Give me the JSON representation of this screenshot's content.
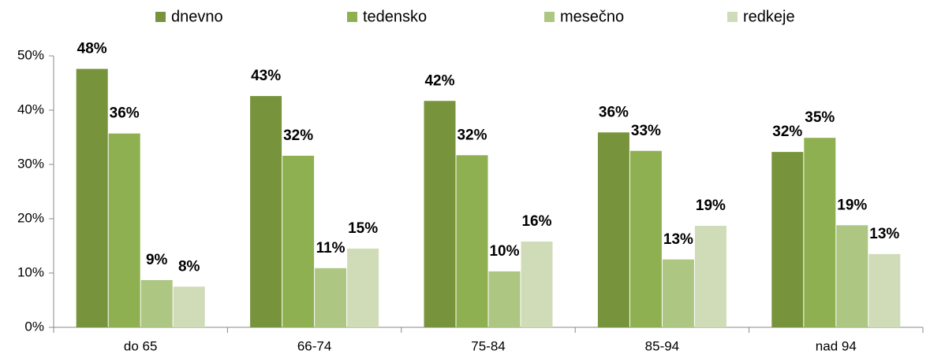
{
  "chart_data": {
    "type": "bar",
    "categories": [
      "do 65",
      "66-74",
      "75-84",
      "85-94",
      "nad 94"
    ],
    "series": [
      {
        "name": "dnevno",
        "color": "#77933c",
        "values": [
          47.6,
          42.6,
          41.7,
          35.9,
          32.3
        ],
        "value_labels": [
          "48%",
          "43%",
          "42%",
          "36%",
          "32%"
        ]
      },
      {
        "name": "tedensko",
        "color": "#8fb051",
        "values": [
          35.7,
          31.6,
          31.7,
          32.5,
          34.9
        ],
        "value_labels": [
          "36%",
          "32%",
          "32%",
          "33%",
          "35%"
        ]
      },
      {
        "name": "mesečno",
        "color": "#adc682",
        "values": [
          8.7,
          10.9,
          10.3,
          12.5,
          18.8
        ],
        "value_labels": [
          "9%",
          "11%",
          "10%",
          "13%",
          "19%"
        ]
      },
      {
        "name": "redkeje",
        "color": "#d0dcb8",
        "values": [
          7.5,
          14.5,
          15.8,
          18.7,
          13.5
        ],
        "value_labels": [
          "8%",
          "15%",
          "16%",
          "19%",
          "13%"
        ]
      }
    ],
    "ylim": [
      0,
      50
    ],
    "yticks": [
      {
        "value": 0,
        "label": "0%"
      },
      {
        "value": 10,
        "label": "10%"
      },
      {
        "value": 20,
        "label": "20%"
      },
      {
        "value": 30,
        "label": "30%"
      },
      {
        "value": 40,
        "label": "40%"
      },
      {
        "value": 50,
        "label": "50%"
      }
    ],
    "legend": "top"
  }
}
